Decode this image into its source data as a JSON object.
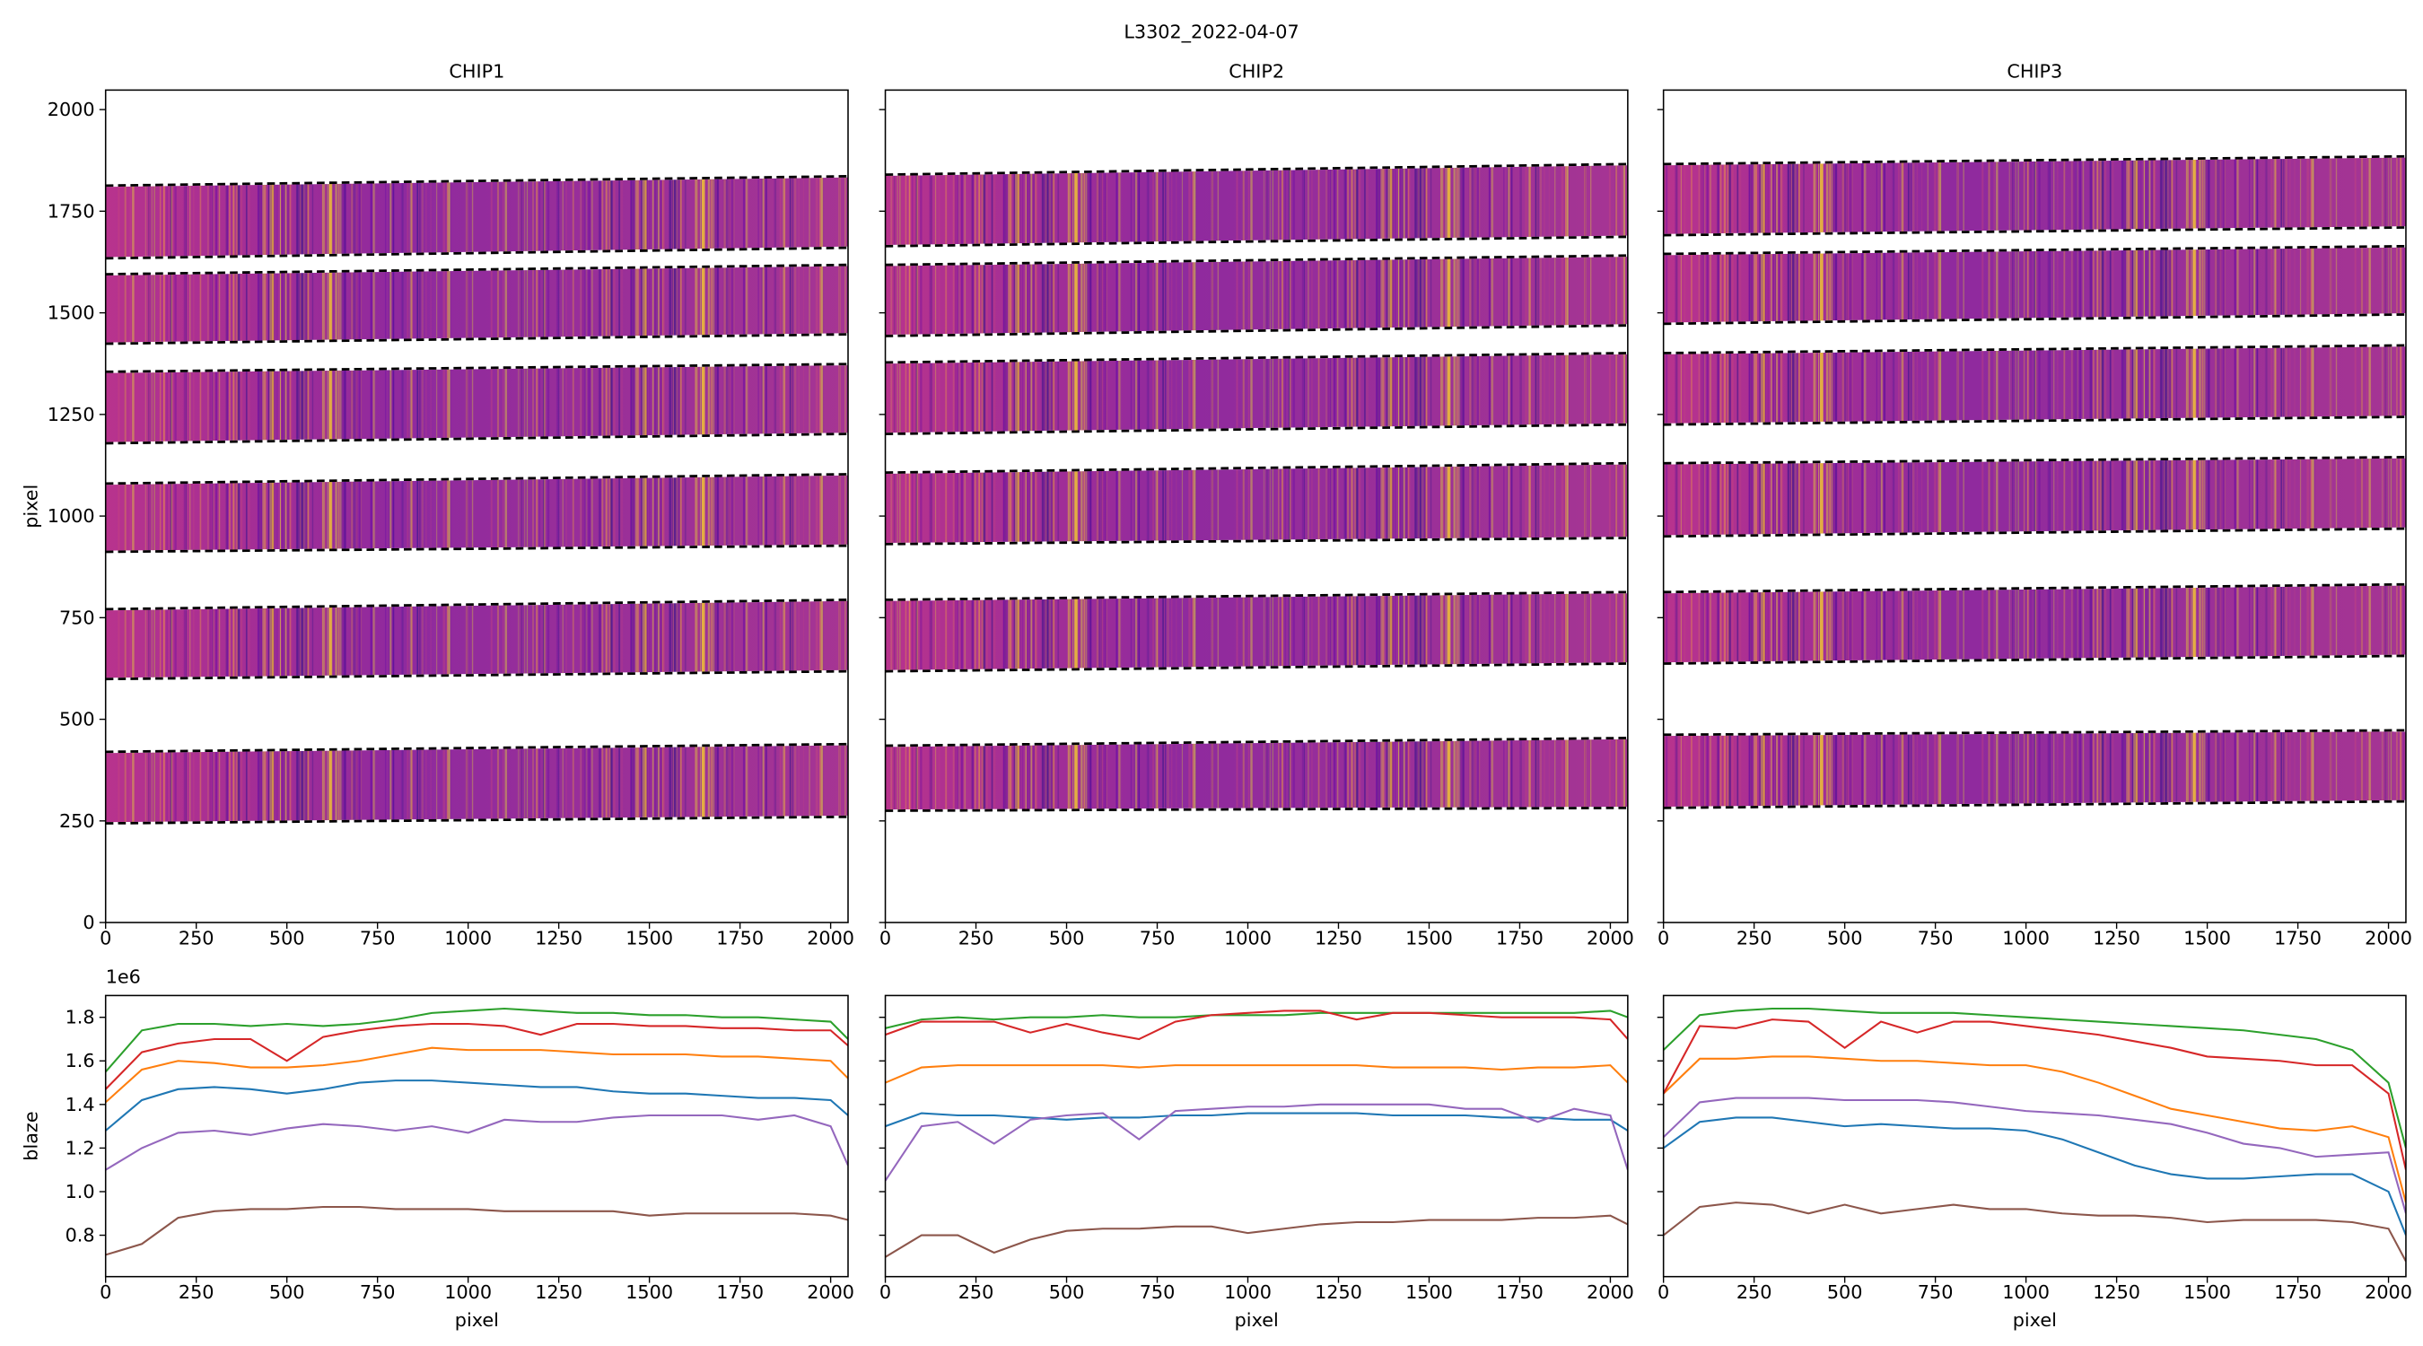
{
  "title": "L3302_2022-04-07",
  "chart_data": [
    {
      "type": "image",
      "title": "CHIP1",
      "ylabel": "pixel",
      "xlim": [
        0,
        2048
      ],
      "ylim": [
        0,
        2048
      ],
      "xticks": [
        0,
        250,
        500,
        750,
        1000,
        1250,
        1500,
        1750,
        2000
      ],
      "yticks": [
        0,
        250,
        500,
        750,
        1000,
        1250,
        1500,
        1750,
        2000
      ],
      "ytick_labels": true,
      "orders": [
        {
          "bottom": [
            1634,
            1660
          ],
          "top": [
            1813,
            1836
          ]
        },
        {
          "bottom": [
            1424,
            1447
          ],
          "top": [
            1595,
            1618
          ]
        },
        {
          "bottom": [
            1179,
            1202
          ],
          "top": [
            1355,
            1374
          ]
        },
        {
          "bottom": [
            912,
            927
          ],
          "top": [
            1080,
            1103
          ]
        },
        {
          "bottom": [
            599,
            618
          ],
          "top": [
            771,
            794
          ]
        },
        {
          "bottom": [
            244,
            260
          ],
          "top": [
            420,
            439
          ]
        }
      ]
    },
    {
      "type": "image",
      "title": "CHIP2",
      "xlim": [
        0,
        2048
      ],
      "ylim": [
        0,
        2048
      ],
      "xticks": [
        0,
        250,
        500,
        750,
        1000,
        1250,
        1500,
        1750,
        2000
      ],
      "yticks": [
        0,
        250,
        500,
        750,
        1000,
        1250,
        1500,
        1750,
        2000
      ],
      "ytick_labels": false,
      "orders": [
        {
          "bottom": [
            1664,
            1687
          ],
          "top": [
            1840,
            1866
          ]
        },
        {
          "bottom": [
            1443,
            1469
          ],
          "top": [
            1618,
            1641
          ]
        },
        {
          "bottom": [
            1202,
            1225
          ],
          "top": [
            1378,
            1401
          ]
        },
        {
          "bottom": [
            931,
            946
          ],
          "top": [
            1107,
            1130
          ]
        },
        {
          "bottom": [
            618,
            637
          ],
          "top": [
            794,
            813
          ]
        },
        {
          "bottom": [
            275,
            282
          ],
          "top": [
            435,
            454
          ]
        }
      ]
    },
    {
      "type": "image",
      "title": "CHIP3",
      "xlim": [
        0,
        2048
      ],
      "ylim": [
        0,
        2048
      ],
      "xticks": [
        0,
        250,
        500,
        750,
        1000,
        1250,
        1500,
        1750,
        2000
      ],
      "yticks": [
        0,
        250,
        500,
        750,
        1000,
        1250,
        1500,
        1750,
        2000
      ],
      "ytick_labels": false,
      "orders": [
        {
          "bottom": [
            1691,
            1710
          ],
          "top": [
            1866,
            1885
          ]
        },
        {
          "bottom": [
            1473,
            1496
          ],
          "top": [
            1645,
            1664
          ]
        },
        {
          "bottom": [
            1225,
            1244
          ],
          "top": [
            1401,
            1420
          ]
        },
        {
          "bottom": [
            950,
            969
          ],
          "top": [
            1130,
            1145
          ]
        },
        {
          "bottom": [
            637,
            656
          ],
          "top": [
            813,
            832
          ]
        },
        {
          "bottom": [
            282,
            298
          ],
          "top": [
            462,
            473
          ]
        }
      ]
    },
    {
      "type": "line",
      "ylabel": "blaze",
      "xlabel": "pixel",
      "offset_label": "1e6",
      "xlim": [
        0,
        2048
      ],
      "ylim": [
        0.61,
        1.9
      ],
      "xticks": [
        0,
        250,
        500,
        750,
        1000,
        1250,
        1500,
        1750,
        2000
      ],
      "yticks": [
        0.8,
        {
          "value": 1,
          "label": "1.0"
        },
        1.2,
        1.4,
        1.6,
        1.8
      ],
      "ytick_labels": true,
      "x": [
        0,
        100,
        200,
        300,
        400,
        500,
        600,
        700,
        800,
        900,
        1000,
        1100,
        1200,
        1300,
        1400,
        1500,
        1600,
        1700,
        1800,
        1900,
        2000,
        2048
      ],
      "series": [
        {
          "color": "#1f77b4",
          "values": [
            1.28,
            1.42,
            1.47,
            1.48,
            1.47,
            1.45,
            1.47,
            1.5,
            1.51,
            1.51,
            1.5,
            1.49,
            1.48,
            1.48,
            1.46,
            1.45,
            1.45,
            1.44,
            1.43,
            1.43,
            1.42,
            1.35
          ]
        },
        {
          "color": "#ff7f0e",
          "values": [
            1.41,
            1.56,
            1.6,
            1.59,
            1.57,
            1.57,
            1.58,
            1.6,
            1.63,
            1.66,
            1.65,
            1.65,
            1.65,
            1.64,
            1.63,
            1.63,
            1.63,
            1.62,
            1.62,
            1.61,
            1.6,
            1.52
          ]
        },
        {
          "color": "#2ca02c",
          "values": [
            1.55,
            1.74,
            1.77,
            1.77,
            1.76,
            1.77,
            1.76,
            1.77,
            1.79,
            1.82,
            1.83,
            1.84,
            1.83,
            1.82,
            1.82,
            1.81,
            1.81,
            1.8,
            1.8,
            1.79,
            1.78,
            1.7
          ]
        },
        {
          "color": "#d62728",
          "values": [
            1.47,
            1.64,
            1.68,
            1.7,
            1.7,
            1.6,
            1.71,
            1.74,
            1.76,
            1.77,
            1.77,
            1.76,
            1.72,
            1.77,
            1.77,
            1.76,
            1.76,
            1.75,
            1.75,
            1.74,
            1.74,
            1.67
          ]
        },
        {
          "color": "#9467bd",
          "values": [
            1.1,
            1.2,
            1.27,
            1.28,
            1.26,
            1.29,
            1.31,
            1.3,
            1.28,
            1.3,
            1.27,
            1.33,
            1.32,
            1.32,
            1.34,
            1.35,
            1.35,
            1.35,
            1.33,
            1.35,
            1.3,
            1.12
          ]
        },
        {
          "color": "#8c564b",
          "values": [
            0.71,
            0.76,
            0.88,
            0.91,
            0.92,
            0.92,
            0.93,
            0.93,
            0.92,
            0.92,
            0.92,
            0.91,
            0.91,
            0.91,
            0.91,
            0.89,
            0.9,
            0.9,
            0.9,
            0.9,
            0.89,
            0.87
          ]
        }
      ]
    },
    {
      "type": "line",
      "xlabel": "pixel",
      "xlim": [
        0,
        2048
      ],
      "ylim": [
        0.61,
        1.9
      ],
      "xticks": [
        0,
        250,
        500,
        750,
        1000,
        1250,
        1500,
        1750,
        2000
      ],
      "yticks": [
        0.8,
        {
          "value": 1,
          "label": "1.0"
        },
        1.2,
        1.4,
        1.6,
        1.8
      ],
      "ytick_labels": false,
      "x": [
        0,
        100,
        200,
        300,
        400,
        500,
        600,
        700,
        800,
        900,
        1000,
        1100,
        1200,
        1300,
        1400,
        1500,
        1600,
        1700,
        1800,
        1900,
        2000,
        2048
      ],
      "series": [
        {
          "color": "#1f77b4",
          "values": [
            1.3,
            1.36,
            1.35,
            1.35,
            1.34,
            1.33,
            1.34,
            1.34,
            1.35,
            1.35,
            1.36,
            1.36,
            1.36,
            1.36,
            1.35,
            1.35,
            1.35,
            1.34,
            1.34,
            1.33,
            1.33,
            1.28
          ]
        },
        {
          "color": "#ff7f0e",
          "values": [
            1.5,
            1.57,
            1.58,
            1.58,
            1.58,
            1.58,
            1.58,
            1.57,
            1.58,
            1.58,
            1.58,
            1.58,
            1.58,
            1.58,
            1.57,
            1.57,
            1.57,
            1.56,
            1.57,
            1.57,
            1.58,
            1.5
          ]
        },
        {
          "color": "#2ca02c",
          "values": [
            1.75,
            1.79,
            1.8,
            1.79,
            1.8,
            1.8,
            1.81,
            1.8,
            1.8,
            1.81,
            1.81,
            1.81,
            1.82,
            1.82,
            1.82,
            1.82,
            1.82,
            1.82,
            1.82,
            1.82,
            1.83,
            1.8
          ]
        },
        {
          "color": "#d62728",
          "values": [
            1.72,
            1.78,
            1.78,
            1.78,
            1.73,
            1.77,
            1.73,
            1.7,
            1.78,
            1.81,
            1.82,
            1.83,
            1.83,
            1.79,
            1.82,
            1.82,
            1.81,
            1.8,
            1.8,
            1.8,
            1.79,
            1.7
          ]
        },
        {
          "color": "#9467bd",
          "values": [
            1.05,
            1.3,
            1.32,
            1.22,
            1.33,
            1.35,
            1.36,
            1.24,
            1.37,
            1.38,
            1.39,
            1.39,
            1.4,
            1.4,
            1.4,
            1.4,
            1.38,
            1.38,
            1.32,
            1.38,
            1.35,
            1.1
          ]
        },
        {
          "color": "#8c564b",
          "values": [
            0.7,
            0.8,
            0.8,
            0.72,
            0.78,
            0.82,
            0.83,
            0.83,
            0.84,
            0.84,
            0.81,
            0.83,
            0.85,
            0.86,
            0.86,
            0.87,
            0.87,
            0.87,
            0.88,
            0.88,
            0.89,
            0.85
          ]
        }
      ]
    },
    {
      "type": "line",
      "xlabel": "pixel",
      "xlim": [
        0,
        2048
      ],
      "ylim": [
        0.61,
        1.9
      ],
      "xticks": [
        0,
        250,
        500,
        750,
        1000,
        1250,
        1500,
        1750,
        2000
      ],
      "yticks": [
        0.8,
        {
          "value": 1,
          "label": "1.0"
        },
        1.2,
        1.4,
        1.6,
        1.8
      ],
      "ytick_labels": false,
      "x": [
        0,
        100,
        200,
        300,
        400,
        500,
        600,
        700,
        800,
        900,
        1000,
        1100,
        1200,
        1300,
        1400,
        1500,
        1600,
        1700,
        1800,
        1900,
        2000,
        2048
      ],
      "series": [
        {
          "color": "#1f77b4",
          "values": [
            1.2,
            1.32,
            1.34,
            1.34,
            1.32,
            1.3,
            1.31,
            1.3,
            1.29,
            1.29,
            1.28,
            1.24,
            1.18,
            1.12,
            1.08,
            1.06,
            1.06,
            1.07,
            1.08,
            1.08,
            1.0,
            0.8
          ]
        },
        {
          "color": "#ff7f0e",
          "values": [
            1.45,
            1.61,
            1.61,
            1.62,
            1.62,
            1.61,
            1.6,
            1.6,
            1.59,
            1.58,
            1.58,
            1.55,
            1.5,
            1.44,
            1.38,
            1.35,
            1.32,
            1.29,
            1.28,
            1.3,
            1.25,
            0.95
          ]
        },
        {
          "color": "#2ca02c",
          "values": [
            1.65,
            1.81,
            1.83,
            1.84,
            1.84,
            1.83,
            1.82,
            1.82,
            1.82,
            1.81,
            1.8,
            1.79,
            1.78,
            1.77,
            1.76,
            1.75,
            1.74,
            1.72,
            1.7,
            1.65,
            1.5,
            1.2
          ]
        },
        {
          "color": "#d62728",
          "values": [
            1.45,
            1.76,
            1.75,
            1.79,
            1.78,
            1.66,
            1.78,
            1.73,
            1.78,
            1.78,
            1.76,
            1.74,
            1.72,
            1.69,
            1.66,
            1.62,
            1.61,
            1.6,
            1.58,
            1.58,
            1.45,
            1.1
          ]
        },
        {
          "color": "#9467bd",
          "values": [
            1.25,
            1.41,
            1.43,
            1.43,
            1.43,
            1.42,
            1.42,
            1.42,
            1.41,
            1.39,
            1.37,
            1.36,
            1.35,
            1.33,
            1.31,
            1.27,
            1.22,
            1.2,
            1.16,
            1.17,
            1.18,
            0.9
          ]
        },
        {
          "color": "#8c564b",
          "values": [
            0.8,
            0.93,
            0.95,
            0.94,
            0.9,
            0.94,
            0.9,
            0.92,
            0.94,
            0.92,
            0.92,
            0.9,
            0.89,
            0.89,
            0.88,
            0.86,
            0.87,
            0.87,
            0.87,
            0.86,
            0.83,
            0.68
          ]
        }
      ]
    }
  ]
}
